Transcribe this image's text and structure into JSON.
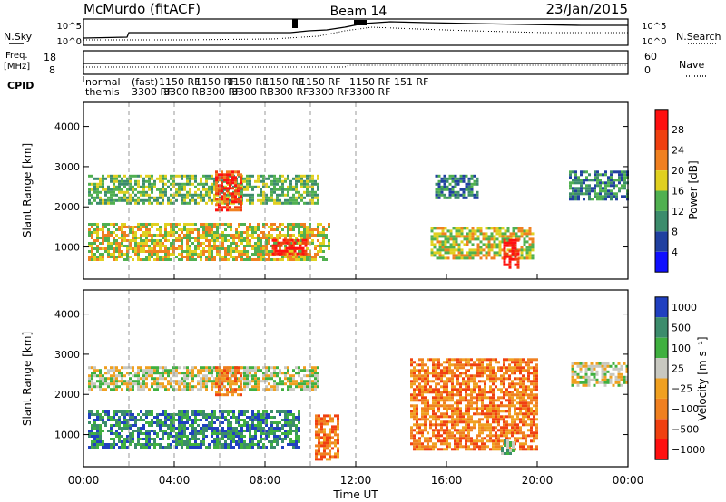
{
  "header": {
    "station": "McMurdo (fitACF)",
    "beam": "Beam 14",
    "date": "23/Jan/2015"
  },
  "top_panels": {
    "nsky_label": "N.Sky",
    "nsearch_label": "N.Search",
    "noise_ticks": [
      "10^5",
      "10^0"
    ],
    "freq_label_1": "Freq.",
    "freq_label_2": "[MHz]",
    "freq_ticks_left": [
      "18",
      "8"
    ],
    "nave_label": "Nave",
    "nave_ticks_right": [
      "60",
      "0"
    ],
    "cpid_label": "CPID",
    "cpid_entries": [
      {
        "line1": "normal",
        "line2": "themis"
      },
      {
        "line1": "(fast)",
        "line2": "3300 RF"
      },
      {
        "line1": "1150 RF",
        "line2": "3300 RF"
      },
      {
        "line1": "1150 RF",
        "line2": "3300 RF"
      },
      {
        "line1": "1150 RF",
        "line2": "3300 RF"
      },
      {
        "line1": "1150 RF",
        "line2": "3300 RF"
      },
      {
        "line1": "1150 RF",
        "line2": "3300 RF"
      },
      {
        "line1": "1150 RF 151 RF",
        "line2": "3300 RF"
      }
    ]
  },
  "chart_data": [
    {
      "type": "heatmap",
      "name": "power",
      "ylabel": "Slant Range [km]",
      "yticks": [
        "1000",
        "2000",
        "3000",
        "4000"
      ],
      "ylim": [
        200,
        4600
      ],
      "colorbar_label": "Power [dB]",
      "colorbar_ticks": [
        "4",
        "8",
        "12",
        "16",
        "20",
        "24",
        "28"
      ],
      "colors": [
        "#1010ff",
        "#2040a0",
        "#3c8c6c",
        "#50b050",
        "#e0d020",
        "#f08020",
        "#f04010",
        "#ff1010"
      ],
      "xlim_hours": [
        0,
        24
      ],
      "regions": [
        {
          "t": [
            0.2,
            10.4
          ],
          "r": [
            2100,
            2800
          ],
          "level": 3
        },
        {
          "t": [
            0.2,
            10.8
          ],
          "r": [
            700,
            1600
          ],
          "level": 4
        },
        {
          "t": [
            5.8,
            7.0
          ],
          "r": [
            1900,
            2900
          ],
          "level": 6
        },
        {
          "t": [
            8.3,
            9.8
          ],
          "r": [
            800,
            1200
          ],
          "level": 7
        },
        {
          "t": [
            15.3,
            19.8
          ],
          "r": [
            700,
            1500
          ],
          "level": 4
        },
        {
          "t": [
            15.5,
            17.4
          ],
          "r": [
            2200,
            2800
          ],
          "level": 2
        },
        {
          "t": [
            21.4,
            24.0
          ],
          "r": [
            2200,
            2900
          ],
          "level": 2
        },
        {
          "t": [
            18.5,
            19.2
          ],
          "r": [
            500,
            1200
          ],
          "level": 7
        }
      ]
    },
    {
      "type": "heatmap",
      "name": "velocity",
      "ylabel": "Slant Range [km]",
      "yticks": [
        "1000",
        "2000",
        "3000",
        "4000"
      ],
      "ylim": [
        200,
        4600
      ],
      "colorbar_label": "Velocity [m s⁻¹]",
      "colorbar_ticks": [
        "1000",
        "500",
        "100",
        "25",
        "−25",
        "−100",
        "−500",
        "−1000"
      ],
      "colors": [
        "#2040c0",
        "#3c8c6c",
        "#40b040",
        "#c8c8c0",
        "#f0a020",
        "#f08020",
        "#f04010",
        "#ff1010"
      ],
      "xlim_hours": [
        0,
        24
      ],
      "regions": [
        {
          "t": [
            0.2,
            9.5
          ],
          "r": [
            700,
            1600
          ],
          "level": 1
        },
        {
          "t": [
            0.2,
            10.4
          ],
          "r": [
            2100,
            2700
          ],
          "level": 3
        },
        {
          "t": [
            5.8,
            7.0
          ],
          "r": [
            2000,
            2700
          ],
          "level": 5
        },
        {
          "t": [
            10.2,
            11.2
          ],
          "r": [
            400,
            1500
          ],
          "level": 5
        },
        {
          "t": [
            14.4,
            20.0
          ],
          "r": [
            600,
            2900
          ],
          "level": 5
        },
        {
          "t": [
            21.5,
            24.0
          ],
          "r": [
            2200,
            2800
          ],
          "level": 3
        },
        {
          "t": [
            18.4,
            19.0
          ],
          "r": [
            500,
            900
          ],
          "level": 2
        }
      ]
    }
  ],
  "x_axis": {
    "label": "Time UT",
    "ticks": [
      "00:00",
      "04:00",
      "08:00",
      "12:00",
      "16:00",
      "20:00",
      "00:00"
    ]
  }
}
